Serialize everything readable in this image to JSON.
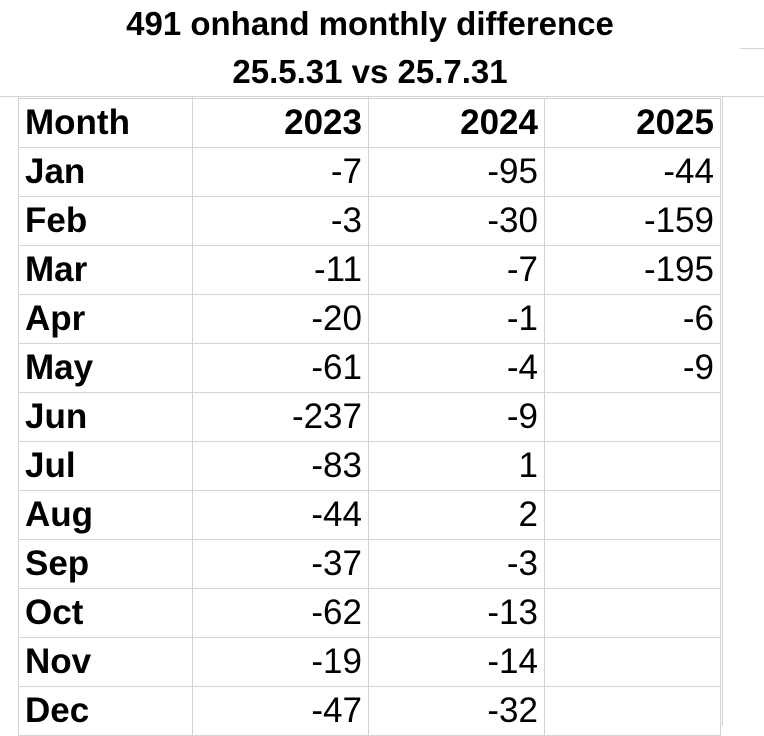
{
  "sheet": {
    "title_line1": "491 onhand monthly difference",
    "title_line2": "25.5.31 vs 25.7.31",
    "headers": [
      "Month",
      "2023",
      "2024",
      "2025"
    ],
    "rows": [
      {
        "month": "Jan",
        "y2023": "-7",
        "y2024": "-95",
        "y2025": "-44"
      },
      {
        "month": "Feb",
        "y2023": "-3",
        "y2024": "-30",
        "y2025": "-159"
      },
      {
        "month": "Mar",
        "y2023": "-11",
        "y2024": "-7",
        "y2025": "-195"
      },
      {
        "month": "Apr",
        "y2023": "-20",
        "y2024": "-1",
        "y2025": "-6"
      },
      {
        "month": "May",
        "y2023": "-61",
        "y2024": "-4",
        "y2025": "-9"
      },
      {
        "month": "Jun",
        "y2023": "-237",
        "y2024": "-9",
        "y2025": ""
      },
      {
        "month": "Jul",
        "y2023": "-83",
        "y2024": "1",
        "y2025": ""
      },
      {
        "month": "Aug",
        "y2023": "-44",
        "y2024": "2",
        "y2025": ""
      },
      {
        "month": "Sep",
        "y2023": "-37",
        "y2024": "-3",
        "y2025": ""
      },
      {
        "month": "Oct",
        "y2023": "-62",
        "y2024": "-13",
        "y2025": ""
      },
      {
        "month": "Nov",
        "y2023": "-19",
        "y2024": "-14",
        "y2025": ""
      },
      {
        "month": "Dec",
        "y2023": "-47",
        "y2024": "-32",
        "y2025": ""
      }
    ]
  }
}
